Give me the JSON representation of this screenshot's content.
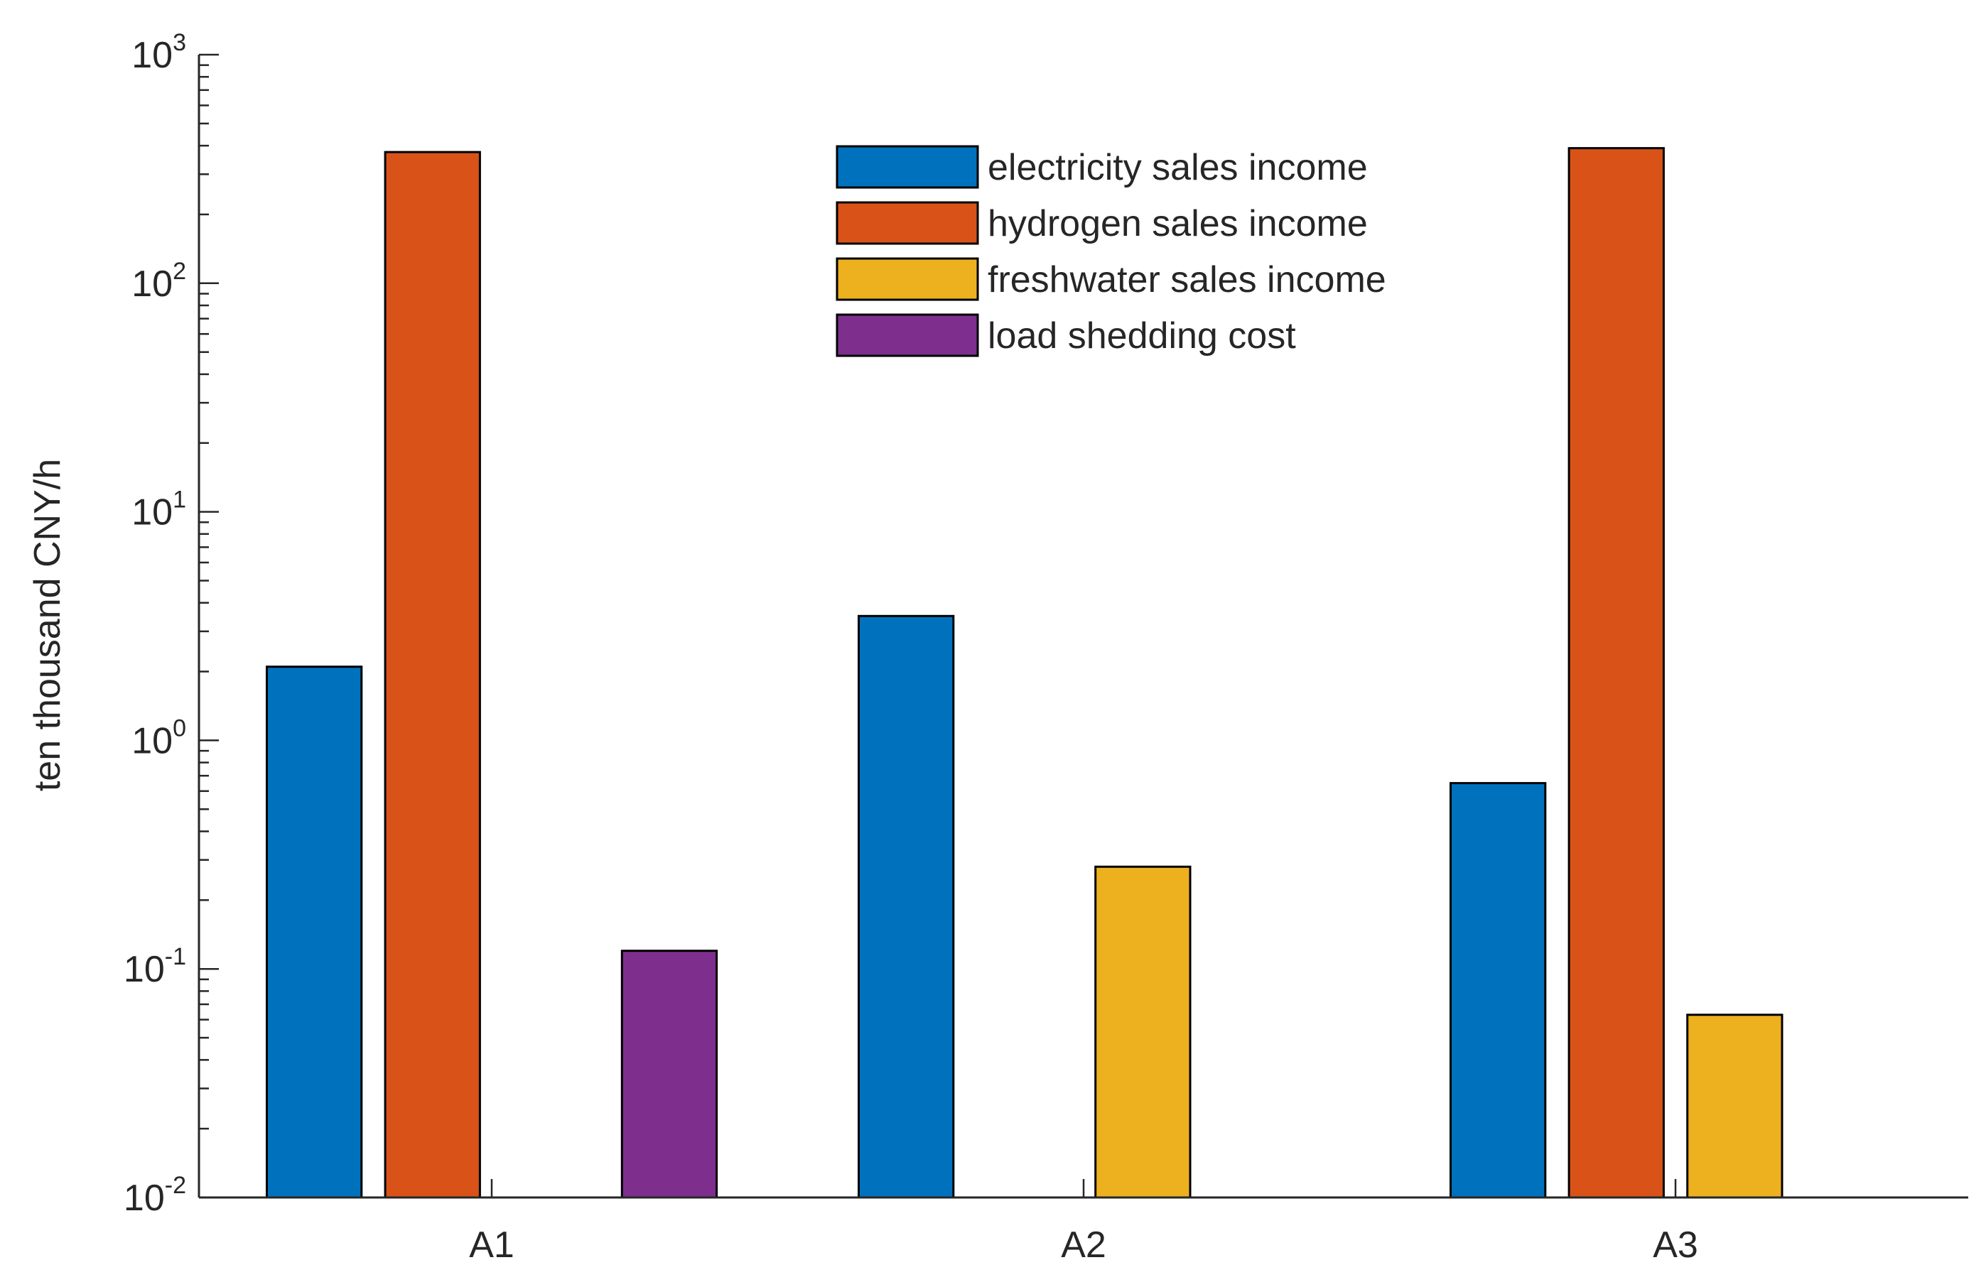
{
  "chart_data": {
    "type": "bar",
    "ylabel": "ten thousand CNY/h",
    "xlabel": "",
    "yscale": "log",
    "ylim": [
      0.01,
      1000
    ],
    "yticks": [
      {
        "base": "10",
        "exp": "-2",
        "value": 0.01
      },
      {
        "base": "10",
        "exp": "-1",
        "value": 0.1
      },
      {
        "base": "10",
        "exp": "0",
        "value": 1
      },
      {
        "base": "10",
        "exp": "1",
        "value": 10
      },
      {
        "base": "10",
        "exp": "2",
        "value": 100
      },
      {
        "base": "10",
        "exp": "3",
        "value": 1000
      }
    ],
    "categories": [
      "A1",
      "A2",
      "A3"
    ],
    "series": [
      {
        "name": "electricity sales income",
        "color": "#0072BD",
        "values": [
          2.1,
          3.5,
          0.65
        ]
      },
      {
        "name": "hydrogen sales income",
        "color": "#D95319",
        "values": [
          375,
          null,
          390
        ]
      },
      {
        "name": "freshwater sales income",
        "color": "#EDB120",
        "values": [
          null,
          0.28,
          0.063
        ]
      },
      {
        "name": "load shedding cost",
        "color": "#7E2F8E",
        "values": [
          0.12,
          null,
          null
        ]
      }
    ],
    "legend_position": "top-center",
    "grid": false
  }
}
